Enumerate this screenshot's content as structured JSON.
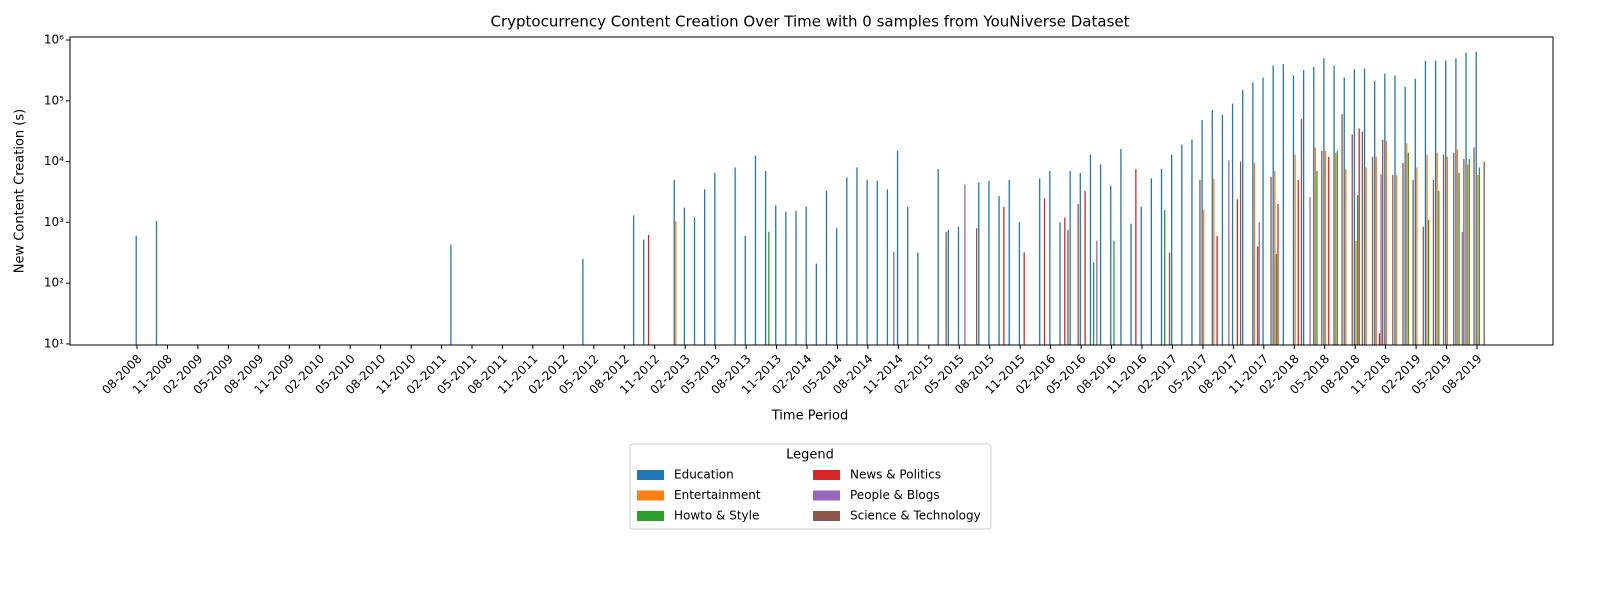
{
  "chart_data": {
    "type": "bar",
    "title": "Cryptocurrency Content Creation Over Time with 0 samples from YouNiverse Dataset",
    "x_label": "Time Period",
    "y_label": "New Content Creation (s)",
    "legend_title": "Legend",
    "legend": "lower center",
    "yscale": "log",
    "ylim": [
      9.6,
      1120000
    ],
    "yticks": [
      {
        "value": 10,
        "label": "10¹"
      },
      {
        "value": 100,
        "label": "10²"
      },
      {
        "value": 1000,
        "label": "10³"
      },
      {
        "value": 10000,
        "label": "10⁴"
      },
      {
        "value": 100000,
        "label": "10⁵"
      },
      {
        "value": 1000000,
        "label": "10⁶"
      }
    ],
    "categories": [
      "08-2008",
      null,
      null,
      "11-2008",
      null,
      null,
      "02-2009",
      null,
      null,
      "05-2009",
      null,
      null,
      "08-2009",
      null,
      null,
      "11-2009",
      null,
      null,
      "02-2010",
      null,
      null,
      "05-2010",
      null,
      null,
      "08-2010",
      null,
      null,
      "11-2010",
      null,
      null,
      "02-2011",
      null,
      null,
      "05-2011",
      null,
      null,
      "08-2011",
      null,
      null,
      "11-2011",
      null,
      null,
      "02-2012",
      null,
      null,
      "05-2012",
      null,
      null,
      "08-2012",
      null,
      null,
      "11-2012",
      null,
      null,
      "02-2013",
      null,
      null,
      "05-2013",
      null,
      null,
      "08-2013",
      null,
      null,
      "11-2013",
      null,
      null,
      "02-2014",
      null,
      null,
      "05-2014",
      null,
      null,
      "08-2014",
      null,
      null,
      "11-2014",
      null,
      null,
      "02-2015",
      null,
      null,
      "05-2015",
      null,
      null,
      "08-2015",
      null,
      null,
      "11-2015",
      null,
      null,
      "02-2016",
      null,
      null,
      "05-2016",
      null,
      null,
      "08-2016",
      null,
      null,
      "11-2016",
      null,
      null,
      "02-2017",
      null,
      null,
      "05-2017",
      null,
      null,
      "08-2017",
      null,
      null,
      "11-2017",
      null,
      null,
      "02-2018",
      null,
      null,
      "05-2018",
      null,
      null,
      "08-2018",
      null,
      null,
      "11-2018",
      null,
      null,
      "02-2019",
      null,
      null,
      "05-2019",
      null,
      null,
      "08-2019"
    ],
    "series": [
      {
        "name": "Education",
        "color": "#1f77b4",
        "values": [
          600,
          null,
          1050,
          null,
          null,
          null,
          null,
          null,
          null,
          null,
          null,
          null,
          null,
          null,
          null,
          null,
          null,
          null,
          null,
          null,
          null,
          null,
          null,
          null,
          null,
          null,
          null,
          null,
          null,
          null,
          null,
          430,
          null,
          null,
          null,
          null,
          null,
          null,
          null,
          null,
          null,
          null,
          null,
          null,
          250,
          null,
          null,
          null,
          null,
          1300,
          520,
          null,
          null,
          5000,
          1750,
          1200,
          3500,
          6500,
          null,
          8000,
          600,
          12500,
          7000,
          1900,
          1500,
          1550,
          1800,
          210,
          3300,
          800,
          5500,
          8000,
          5000,
          4800,
          3500,
          15000,
          1800,
          320,
          null,
          7500,
          750,
          850,
          null,
          4500,
          4800,
          2700,
          5000,
          1000,
          null,
          5300,
          7000,
          1000,
          7000,
          6500,
          13000,
          9000,
          4000,
          16000,
          950,
          1800,
          5300,
          7500,
          13000,
          19000,
          23000,
          48000,
          70000,
          58000,
          90000,
          150000,
          200000,
          240000,
          380000,
          400000,
          260000,
          320000,
          360000,
          500000,
          380000,
          240000,
          330000,
          340000,
          210000,
          280000,
          260000,
          170000,
          230000,
          450000,
          460000,
          460000,
          500000,
          620000,
          640000
        ]
      },
      {
        "name": "Entertainment",
        "color": "#ff7f0e",
        "values": [
          null,
          null,
          null,
          null,
          null,
          null,
          null,
          null,
          null,
          null,
          null,
          null,
          null,
          null,
          null,
          null,
          null,
          null,
          null,
          null,
          null,
          null,
          null,
          null,
          null,
          null,
          null,
          null,
          null,
          null,
          null,
          null,
          null,
          null,
          null,
          null,
          null,
          null,
          null,
          null,
          null,
          null,
          null,
          null,
          null,
          null,
          null,
          null,
          null,
          null,
          null,
          null,
          null,
          1050,
          null,
          null,
          null,
          null,
          null,
          null,
          null,
          null,
          null,
          null,
          null,
          null,
          null,
          null,
          null,
          null,
          null,
          null,
          null,
          null,
          null,
          null,
          null,
          null,
          null,
          null,
          null,
          null,
          null,
          null,
          null,
          null,
          null,
          null,
          null,
          null,
          null,
          null,
          null,
          null,
          null,
          null,
          null,
          null,
          null,
          null,
          null,
          null,
          null,
          null,
          null,
          1600,
          5200,
          null,
          null,
          null,
          9500,
          null,
          7000,
          null,
          13000,
          null,
          17000,
          15000,
          14000,
          7500,
          500,
          8000,
          12000,
          22000,
          6000,
          20000,
          8000,
          13000,
          14000,
          12000,
          16000,
          9000,
          6000
        ]
      },
      {
        "name": "Howto & Style",
        "color": "#2ca02c",
        "values": [
          null,
          null,
          null,
          null,
          null,
          null,
          null,
          null,
          null,
          null,
          null,
          null,
          null,
          null,
          null,
          null,
          null,
          null,
          null,
          null,
          null,
          null,
          null,
          null,
          null,
          null,
          null,
          null,
          null,
          null,
          null,
          null,
          null,
          null,
          null,
          null,
          null,
          null,
          null,
          null,
          null,
          null,
          null,
          null,
          null,
          null,
          null,
          null,
          null,
          null,
          null,
          null,
          null,
          null,
          null,
          null,
          null,
          null,
          null,
          null,
          null,
          null,
          700,
          null,
          null,
          null,
          null,
          null,
          null,
          null,
          null,
          null,
          null,
          null,
          null,
          null,
          null,
          null,
          null,
          null,
          null,
          null,
          null,
          null,
          null,
          null,
          null,
          null,
          null,
          null,
          null,
          null,
          null,
          null,
          220,
          null,
          500,
          null,
          null,
          null,
          null,
          1600,
          null,
          null,
          null,
          null,
          null,
          null,
          null,
          null,
          null,
          null,
          300,
          null,
          null,
          null,
          7000,
          null,
          15000,
          null,
          2800,
          null,
          null,
          null,
          null,
          14000,
          null,
          1100,
          3300,
          null,
          6500,
          11000,
          8000
        ]
      },
      {
        "name": "News & Politics",
        "color": "#d62728",
        "values": [
          null,
          null,
          null,
          null,
          null,
          null,
          null,
          null,
          null,
          null,
          null,
          null,
          null,
          null,
          null,
          null,
          null,
          null,
          null,
          null,
          null,
          null,
          null,
          null,
          null,
          null,
          null,
          null,
          null,
          null,
          null,
          null,
          null,
          null,
          null,
          null,
          null,
          null,
          null,
          null,
          null,
          null,
          null,
          null,
          null,
          null,
          null,
          null,
          null,
          null,
          620,
          null,
          null,
          null,
          null,
          null,
          null,
          null,
          null,
          null,
          null,
          null,
          null,
          null,
          null,
          null,
          null,
          null,
          null,
          null,
          null,
          null,
          null,
          null,
          null,
          null,
          null,
          null,
          null,
          null,
          null,
          null,
          null,
          null,
          null,
          1800,
          null,
          320,
          null,
          2500,
          null,
          1200,
          null,
          3300,
          null,
          null,
          null,
          null,
          7500,
          null,
          null,
          null,
          null,
          null,
          null,
          null,
          600,
          null,
          2400,
          null,
          400,
          null,
          2000,
          null,
          5000,
          null,
          null,
          12000,
          null,
          null,
          35000,
          null,
          15,
          null,
          null,
          null,
          null,
          null,
          null,
          null,
          null,
          null,
          null
        ]
      },
      {
        "name": "People & Blogs",
        "color": "#9467bd",
        "values": [
          null,
          null,
          null,
          null,
          null,
          null,
          null,
          null,
          null,
          null,
          null,
          null,
          null,
          null,
          null,
          null,
          null,
          null,
          null,
          null,
          null,
          null,
          null,
          null,
          null,
          null,
          null,
          null,
          null,
          null,
          null,
          null,
          null,
          null,
          null,
          null,
          null,
          null,
          null,
          null,
          null,
          null,
          null,
          null,
          null,
          null,
          null,
          null,
          null,
          null,
          null,
          null,
          null,
          null,
          null,
          null,
          null,
          null,
          null,
          null,
          null,
          null,
          null,
          null,
          null,
          null,
          null,
          null,
          null,
          null,
          null,
          null,
          null,
          null,
          330,
          null,
          null,
          null,
          null,
          null,
          null,
          4200,
          null,
          null,
          null,
          null,
          null,
          null,
          null,
          null,
          null,
          null,
          null,
          null,
          500,
          null,
          null,
          null,
          null,
          null,
          null,
          null,
          null,
          null,
          null,
          null,
          null,
          10500,
          null,
          null,
          1000,
          null,
          null,
          null,
          null,
          2600,
          null,
          null,
          null,
          null,
          null,
          null,
          6200,
          null,
          null,
          null,
          null,
          null,
          null,
          null,
          700,
          null,
          null
        ]
      },
      {
        "name": "Science & Technology",
        "color": "#8c564b",
        "values": [
          null,
          null,
          null,
          null,
          null,
          null,
          null,
          null,
          null,
          null,
          null,
          null,
          null,
          null,
          null,
          null,
          null,
          null,
          null,
          null,
          null,
          null,
          null,
          null,
          null,
          null,
          null,
          null,
          null,
          null,
          null,
          null,
          null,
          null,
          null,
          null,
          null,
          null,
          null,
          null,
          null,
          null,
          null,
          null,
          null,
          null,
          null,
          null,
          null,
          null,
          null,
          null,
          null,
          null,
          null,
          null,
          null,
          null,
          null,
          null,
          null,
          null,
          null,
          null,
          null,
          null,
          null,
          null,
          null,
          null,
          null,
          null,
          null,
          null,
          null,
          null,
          null,
          null,
          null,
          700,
          null,
          null,
          800,
          null,
          null,
          null,
          null,
          null,
          null,
          null,
          null,
          750,
          2000,
          null,
          null,
          null,
          null,
          null,
          null,
          null,
          null,
          320,
          null,
          null,
          5000,
          null,
          null,
          null,
          10000,
          null,
          null,
          5600,
          null,
          null,
          50000,
          null,
          15000,
          null,
          60000,
          28000,
          31000,
          12000,
          23000,
          6000,
          9500,
          5000,
          850,
          5000,
          13000,
          14000,
          11000,
          17000,
          10000
        ]
      }
    ]
  }
}
